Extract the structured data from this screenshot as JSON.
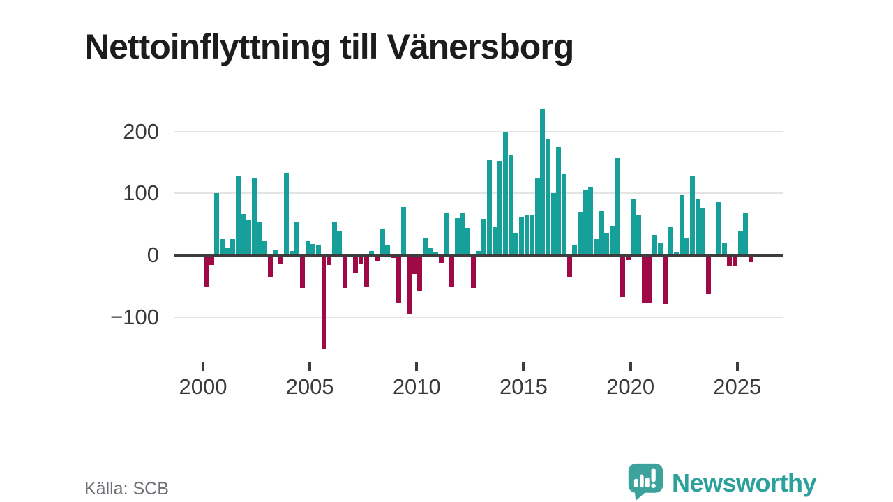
{
  "title": "Nettoinflyttning till Vänersborg",
  "source": "Källa: SCB",
  "branding": {
    "label": "Newsworthy",
    "icon": "newsworthy-speech-bubble-chart-icon"
  },
  "colors": {
    "positive_bar": "#17a099",
    "negative_bar": "#9f0945",
    "axis": "#3d3d3d",
    "grid": "#e4e4e4",
    "title_text": "#1c1c1c",
    "source_text": "#6f6f77",
    "brand_teal": "#2ba19c"
  },
  "chart_data": {
    "type": "bar",
    "title": "Nettoinflyttning till Vänersborg",
    "series_name": "Nettoinflyttning per kvartal",
    "xlabel": "",
    "ylabel": "",
    "grid": "horizontal",
    "legend": "none",
    "ylim": [
      -160,
      245
    ],
    "yticks": [
      {
        "value": 200,
        "label": "200"
      },
      {
        "value": 100,
        "label": "100"
      },
      {
        "value": 0,
        "label": "0"
      },
      {
        "value": -100,
        "label": "−100"
      }
    ],
    "xticks": [
      {
        "year": 2000,
        "label": "2000"
      },
      {
        "year": 2005,
        "label": "2005"
      },
      {
        "year": 2010,
        "label": "2010"
      },
      {
        "year": 2015,
        "label": "2015"
      },
      {
        "year": 2020,
        "label": "2020"
      },
      {
        "year": 2025,
        "label": "2025"
      }
    ],
    "categories": [
      "2000 Q1",
      "2000 Q2",
      "2000 Q3",
      "2000 Q4",
      "2001 Q1",
      "2001 Q2",
      "2001 Q3",
      "2001 Q4",
      "2002 Q1",
      "2002 Q2",
      "2002 Q3",
      "2002 Q4",
      "2003 Q1",
      "2003 Q2",
      "2003 Q3",
      "2003 Q4",
      "2004 Q1",
      "2004 Q2",
      "2004 Q3",
      "2004 Q4",
      "2005 Q1",
      "2005 Q2",
      "2005 Q3",
      "2005 Q4",
      "2006 Q1",
      "2006 Q2",
      "2006 Q3",
      "2006 Q4",
      "2007 Q1",
      "2007 Q2",
      "2007 Q3",
      "2007 Q4",
      "2008 Q1",
      "2008 Q2",
      "2008 Q3",
      "2008 Q4",
      "2009 Q1",
      "2009 Q2",
      "2009 Q3",
      "2009 Q4",
      "2010 Q1",
      "2010 Q2",
      "2010 Q3",
      "2010 Q4",
      "2011 Q1",
      "2011 Q2",
      "2011 Q3",
      "2011 Q4",
      "2012 Q1",
      "2012 Q2",
      "2012 Q3",
      "2012 Q4",
      "2013 Q1",
      "2013 Q2",
      "2013 Q3",
      "2013 Q4",
      "2014 Q1",
      "2014 Q2",
      "2014 Q3",
      "2014 Q4",
      "2015 Q1",
      "2015 Q2",
      "2015 Q3",
      "2015 Q4",
      "2016 Q1",
      "2016 Q2",
      "2016 Q3",
      "2016 Q4",
      "2017 Q1",
      "2017 Q2",
      "2017 Q3",
      "2017 Q4",
      "2018 Q1",
      "2018 Q2",
      "2018 Q3",
      "2018 Q4",
      "2019 Q1",
      "2019 Q2",
      "2019 Q3",
      "2019 Q4",
      "2020 Q1",
      "2020 Q2",
      "2020 Q3",
      "2020 Q4",
      "2021 Q1",
      "2021 Q2",
      "2021 Q3",
      "2021 Q4",
      "2022 Q1",
      "2022 Q2",
      "2022 Q3",
      "2022 Q4",
      "2023 Q1",
      "2023 Q2",
      "2023 Q3",
      "2023 Q4",
      "2024 Q1",
      "2024 Q2",
      "2024 Q3",
      "2024 Q4",
      "2025 Q1",
      "2025 Q2",
      "2025 Q3"
    ],
    "values": [
      -52,
      -16,
      100,
      26,
      11,
      26,
      127,
      66,
      57,
      124,
      54,
      23,
      -36,
      8,
      -15,
      133,
      7,
      54,
      -53,
      24,
      18,
      16,
      -151,
      -16,
      53,
      39,
      -53,
      0,
      -29,
      -13,
      -51,
      7,
      -9,
      43,
      17,
      -5,
      -78,
      78,
      -96,
      -31,
      -57,
      27,
      12,
      5,
      -12,
      68,
      -52,
      60,
      68,
      44,
      -53,
      7,
      59,
      153,
      45,
      152,
      199,
      162,
      36,
      62,
      64,
      64,
      124,
      237,
      188,
      100,
      175,
      132,
      -35,
      17,
      70,
      106,
      111,
      26,
      71,
      36,
      47,
      158,
      -68,
      -8,
      90,
      64,
      -77,
      -78,
      33,
      20,
      -79,
      45,
      6,
      97,
      28,
      127,
      91,
      75,
      -62,
      0,
      86,
      19,
      -17,
      -17,
      39,
      68,
      -11
    ]
  }
}
